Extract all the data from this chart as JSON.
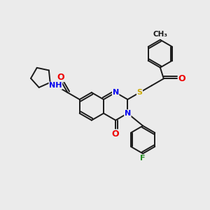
{
  "background_color": "#ebebeb",
  "bond_color": "#1a1a1a",
  "atom_colors": {
    "N": "#0000ee",
    "O": "#ee0000",
    "S": "#ccaa00",
    "F": "#228B22"
  },
  "figsize": [
    3.0,
    3.0
  ],
  "dpi": 100,
  "BL": 20
}
